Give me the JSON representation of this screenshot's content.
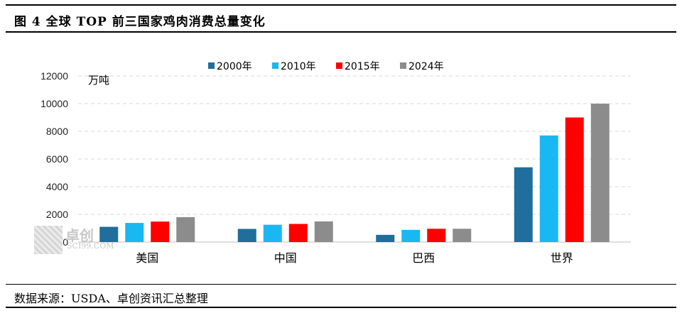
{
  "title": "图 4 全球 TOP 前三国家鸡肉消费总量变化",
  "source": "数据来源：USDA、卓创资讯汇总整理",
  "watermark": {
    "brand": "卓创",
    "domain": "SCI99.COM"
  },
  "chart_data": {
    "type": "bar",
    "unit_label": "万吨",
    "categories": [
      "美国",
      "中国",
      "巴西",
      "世界"
    ],
    "series": [
      {
        "name": "2000年",
        "color": "#1f6e9c",
        "values": [
          1100,
          950,
          520,
          5400
        ]
      },
      {
        "name": "2010年",
        "color": "#19b8f2",
        "values": [
          1380,
          1250,
          880,
          7700
        ]
      },
      {
        "name": "2015年",
        "color": "#ff0000",
        "values": [
          1480,
          1310,
          960,
          9000
        ]
      },
      {
        "name": "2024年",
        "color": "#8c8c8c",
        "values": [
          1800,
          1490,
          960,
          10000
        ]
      }
    ],
    "ylim": [
      0,
      12000
    ],
    "yticks": [
      0,
      2000,
      4000,
      6000,
      8000,
      10000,
      12000
    ],
    "grid": true,
    "legend_position": "top"
  }
}
